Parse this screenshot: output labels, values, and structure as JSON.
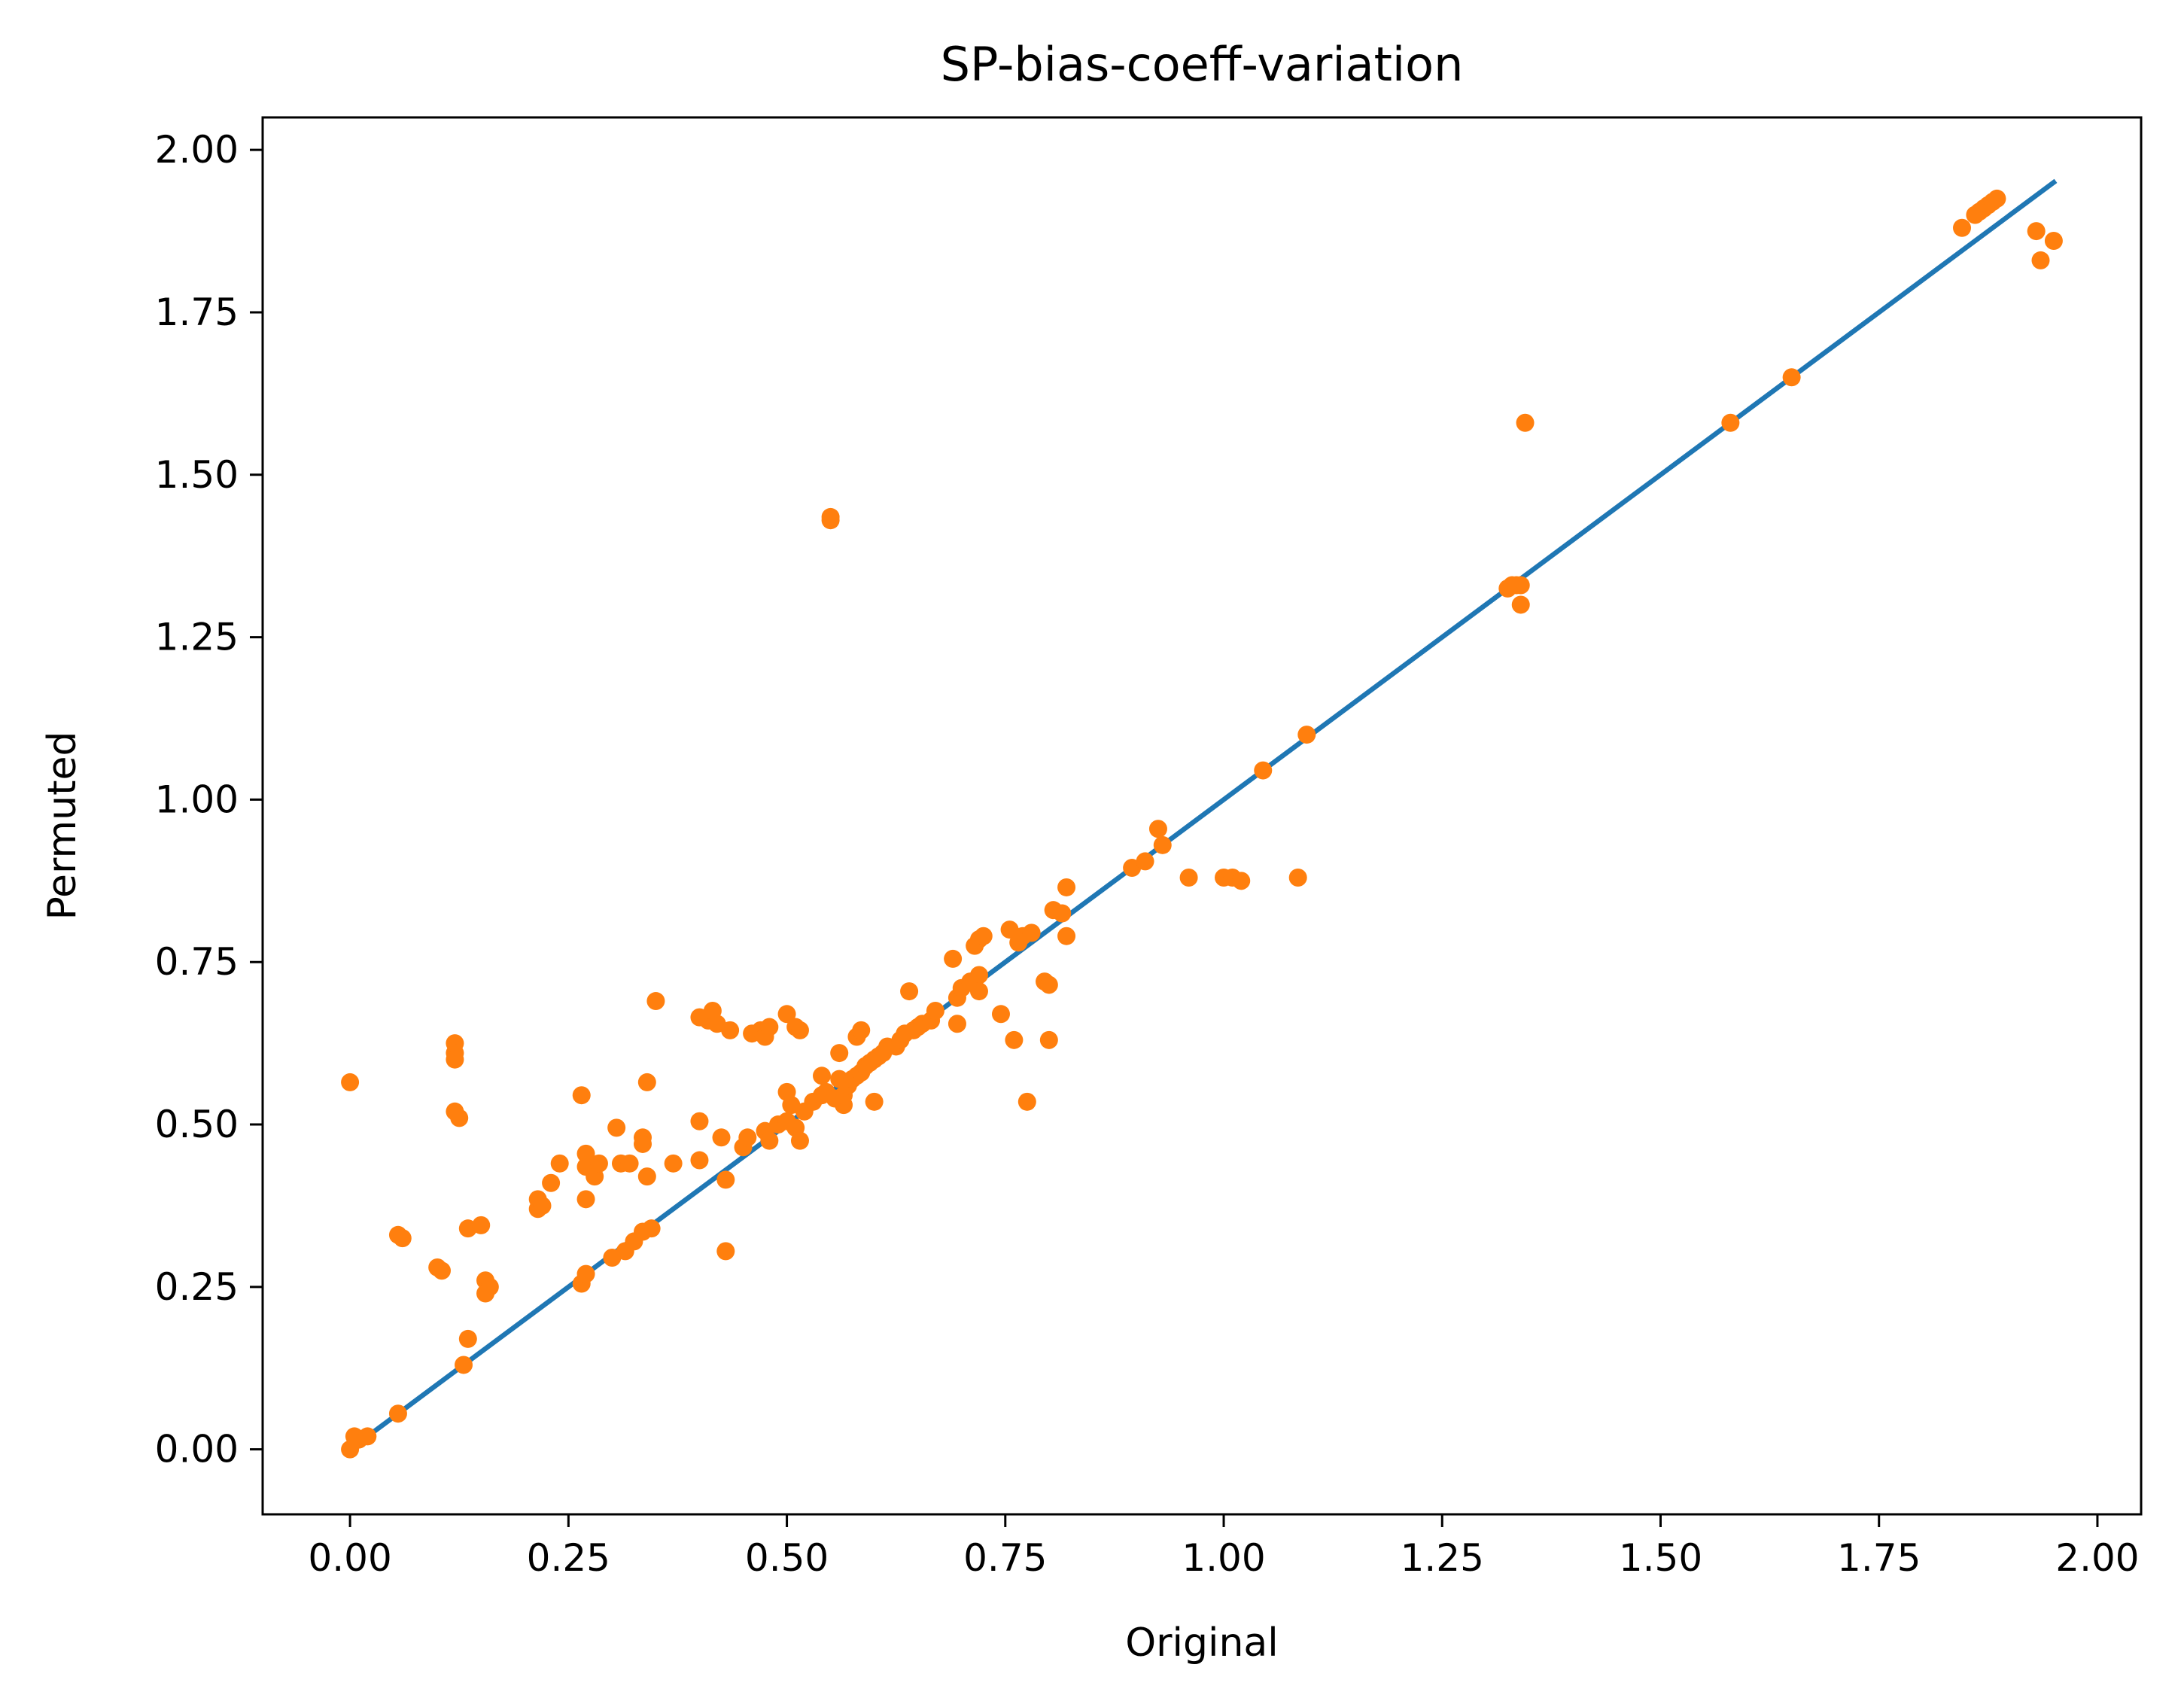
{
  "chart_data": {
    "type": "scatter",
    "title": "SP-bias-coeff-variation",
    "xlabel": "Original",
    "ylabel": "Permuted",
    "xlim": [
      -0.1,
      2.05
    ],
    "ylim": [
      -0.1,
      2.05
    ],
    "xticks": [
      "0.00",
      "0.25",
      "0.50",
      "0.75",
      "1.00",
      "1.25",
      "1.50",
      "1.75",
      "2.00"
    ],
    "yticks": [
      "0.00",
      "0.25",
      "0.50",
      "0.75",
      "1.00",
      "1.25",
      "1.50",
      "1.75",
      "2.00"
    ],
    "xtick_values": [
      0,
      0.25,
      0.5,
      0.75,
      1.0,
      1.25,
      1.5,
      1.75,
      2.0
    ],
    "ytick_values": [
      0,
      0.25,
      0.5,
      0.75,
      1.0,
      1.25,
      1.5,
      1.75,
      2.0
    ],
    "grid": false,
    "colors": {
      "line": "#1f77b4",
      "points": "#ff7f0e"
    },
    "line": {
      "x": [
        0.0,
        1.95
      ],
      "y": [
        0.0,
        1.95
      ]
    },
    "points": [
      [
        0.0,
        0.0
      ],
      [
        0.0,
        0.565
      ],
      [
        0.005,
        0.02
      ],
      [
        0.01,
        0.015
      ],
      [
        0.02,
        0.02
      ],
      [
        0.055,
        0.055
      ],
      [
        0.055,
        0.33
      ],
      [
        0.06,
        0.325
      ],
      [
        0.1,
        0.28
      ],
      [
        0.105,
        0.275
      ],
      [
        0.12,
        0.625
      ],
      [
        0.12,
        0.61
      ],
      [
        0.12,
        0.6
      ],
      [
        0.12,
        0.52
      ],
      [
        0.125,
        0.51
      ],
      [
        0.13,
        0.13
      ],
      [
        0.135,
        0.17
      ],
      [
        0.135,
        0.34
      ],
      [
        0.15,
        0.345
      ],
      [
        0.155,
        0.26
      ],
      [
        0.155,
        0.24
      ],
      [
        0.16,
        0.25
      ],
      [
        0.215,
        0.385
      ],
      [
        0.215,
        0.37
      ],
      [
        0.22,
        0.375
      ],
      [
        0.23,
        0.41
      ],
      [
        0.24,
        0.44
      ],
      [
        0.265,
        0.545
      ],
      [
        0.265,
        0.255
      ],
      [
        0.27,
        0.27
      ],
      [
        0.27,
        0.455
      ],
      [
        0.27,
        0.435
      ],
      [
        0.27,
        0.385
      ],
      [
        0.28,
        0.42
      ],
      [
        0.285,
        0.44
      ],
      [
        0.3,
        0.295
      ],
      [
        0.305,
        0.495
      ],
      [
        0.31,
        0.44
      ],
      [
        0.315,
        0.305
      ],
      [
        0.32,
        0.44
      ],
      [
        0.325,
        0.32
      ],
      [
        0.335,
        0.48
      ],
      [
        0.335,
        0.335
      ],
      [
        0.335,
        0.47
      ],
      [
        0.34,
        0.565
      ],
      [
        0.34,
        0.42
      ],
      [
        0.345,
        0.34
      ],
      [
        0.35,
        0.69
      ],
      [
        0.37,
        0.44
      ],
      [
        0.4,
        0.505
      ],
      [
        0.4,
        0.445
      ],
      [
        0.4,
        0.665
      ],
      [
        0.41,
        0.66
      ],
      [
        0.415,
        0.675
      ],
      [
        0.42,
        0.655
      ],
      [
        0.425,
        0.48
      ],
      [
        0.43,
        0.415
      ],
      [
        0.43,
        0.305
      ],
      [
        0.435,
        0.645
      ],
      [
        0.45,
        0.465
      ],
      [
        0.455,
        0.48
      ],
      [
        0.46,
        0.64
      ],
      [
        0.47,
        0.645
      ],
      [
        0.475,
        0.49
      ],
      [
        0.475,
        0.635
      ],
      [
        0.48,
        0.65
      ],
      [
        0.48,
        0.475
      ],
      [
        0.49,
        0.5
      ],
      [
        0.5,
        0.67
      ],
      [
        0.5,
        0.55
      ],
      [
        0.5,
        0.505
      ],
      [
        0.505,
        0.53
      ],
      [
        0.51,
        0.65
      ],
      [
        0.51,
        0.495
      ],
      [
        0.515,
        0.475
      ],
      [
        0.515,
        0.645
      ],
      [
        0.52,
        0.52
      ],
      [
        0.53,
        0.535
      ],
      [
        0.54,
        0.575
      ],
      [
        0.54,
        0.545
      ],
      [
        0.545,
        0.55
      ],
      [
        0.55,
        1.43
      ],
      [
        0.55,
        1.435
      ],
      [
        0.555,
        0.54
      ],
      [
        0.56,
        0.61
      ],
      [
        0.56,
        0.57
      ],
      [
        0.565,
        0.53
      ],
      [
        0.565,
        0.545
      ],
      [
        0.57,
        0.56
      ],
      [
        0.575,
        0.57
      ],
      [
        0.58,
        0.635
      ],
      [
        0.58,
        0.575
      ],
      [
        0.585,
        0.645
      ],
      [
        0.585,
        0.58
      ],
      [
        0.59,
        0.59
      ],
      [
        0.595,
        0.595
      ],
      [
        0.6,
        0.535
      ],
      [
        0.6,
        0.6
      ],
      [
        0.605,
        0.605
      ],
      [
        0.61,
        0.61
      ],
      [
        0.615,
        0.62
      ],
      [
        0.625,
        0.62
      ],
      [
        0.63,
        0.63
      ],
      [
        0.635,
        0.64
      ],
      [
        0.64,
        0.705
      ],
      [
        0.645,
        0.645
      ],
      [
        0.65,
        0.65
      ],
      [
        0.655,
        0.655
      ],
      [
        0.665,
        0.66
      ],
      [
        0.67,
        0.675
      ],
      [
        0.69,
        0.755
      ],
      [
        0.695,
        0.695
      ],
      [
        0.695,
        0.655
      ],
      [
        0.7,
        0.71
      ],
      [
        0.71,
        0.72
      ],
      [
        0.715,
        0.775
      ],
      [
        0.72,
        0.785
      ],
      [
        0.72,
        0.73
      ],
      [
        0.72,
        0.705
      ],
      [
        0.725,
        0.79
      ],
      [
        0.745,
        0.67
      ],
      [
        0.755,
        0.8
      ],
      [
        0.76,
        0.63
      ],
      [
        0.765,
        0.78
      ],
      [
        0.77,
        0.79
      ],
      [
        0.775,
        0.535
      ],
      [
        0.78,
        0.795
      ],
      [
        0.795,
        0.72
      ],
      [
        0.8,
        0.715
      ],
      [
        0.8,
        0.63
      ],
      [
        0.805,
        0.83
      ],
      [
        0.815,
        0.825
      ],
      [
        0.82,
        0.79
      ],
      [
        0.82,
        0.865
      ],
      [
        0.895,
        0.895
      ],
      [
        0.91,
        0.905
      ],
      [
        0.925,
        0.955
      ],
      [
        0.93,
        0.93
      ],
      [
        0.96,
        0.88
      ],
      [
        1.0,
        0.88
      ],
      [
        1.01,
        0.88
      ],
      [
        1.02,
        0.875
      ],
      [
        1.045,
        1.045
      ],
      [
        1.085,
        0.88
      ],
      [
        1.095,
        1.1
      ],
      [
        1.325,
        1.325
      ],
      [
        1.33,
        1.33
      ],
      [
        1.335,
        1.33
      ],
      [
        1.34,
        1.33
      ],
      [
        1.34,
        1.3
      ],
      [
        1.345,
        1.58
      ],
      [
        1.58,
        1.58
      ],
      [
        1.65,
        1.65
      ],
      [
        1.845,
        1.88
      ],
      [
        1.86,
        1.9
      ],
      [
        1.865,
        1.905
      ],
      [
        1.87,
        1.91
      ],
      [
        1.875,
        1.915
      ],
      [
        1.88,
        1.92
      ],
      [
        1.885,
        1.925
      ],
      [
        1.93,
        1.875
      ],
      [
        1.935,
        1.83
      ],
      [
        1.95,
        1.86
      ]
    ]
  }
}
